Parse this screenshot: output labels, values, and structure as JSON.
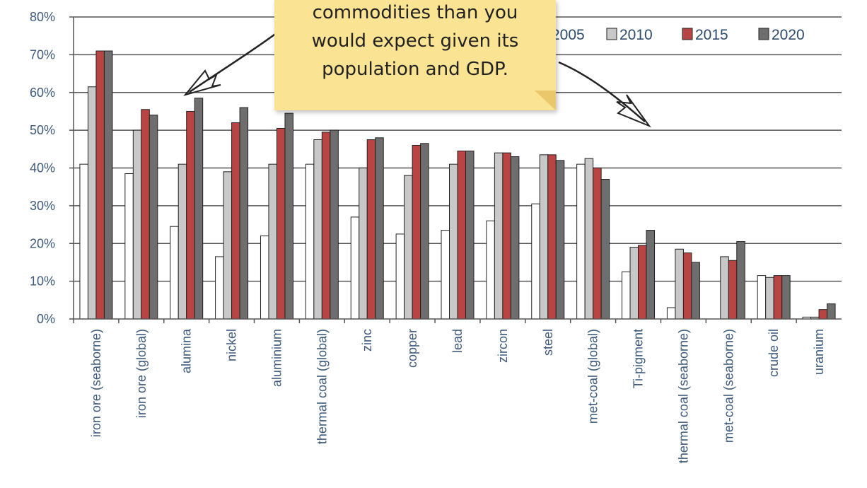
{
  "callout": {
    "lines": [
      "commodities than you",
      "would expect given its",
      "population and GDP."
    ]
  },
  "chart_data": {
    "type": "bar",
    "title": "",
    "xlabel": "",
    "ylabel": "",
    "ylim": [
      0,
      80
    ],
    "yticks": [
      "0%",
      "10%",
      "20%",
      "30%",
      "40%",
      "50%",
      "60%",
      "70%",
      "80%"
    ],
    "grid": true,
    "legend_position": "top-right",
    "categories": [
      "iron ore (seaborne)",
      "iron ore (global)",
      "alumina",
      "nickel",
      "aluminium",
      "thermal coal (global)",
      "zinc",
      "copper",
      "lead",
      "zircon",
      "steel",
      "met-coal (global)",
      "Ti-pigment",
      "thermal coal (seaborne)",
      "met-coal (seaborne)",
      "crude oil",
      "uranium"
    ],
    "series": [
      {
        "name": "2005",
        "color": "#ffffff",
        "values": [
          41,
          38.5,
          24.5,
          16.5,
          22,
          41,
          27,
          22.5,
          23.5,
          26,
          30.5,
          41,
          12.5,
          3,
          0,
          11.5,
          0.5
        ]
      },
      {
        "name": "2010",
        "color": "#c8c8c8",
        "values": [
          61.5,
          50,
          41,
          39,
          41,
          47.5,
          40,
          38,
          41,
          44,
          43.5,
          42.5,
          19,
          18.5,
          16.5,
          11,
          0.5
        ]
      },
      {
        "name": "2015",
        "color": "#b84444",
        "values": [
          71,
          55.5,
          55,
          52,
          50.5,
          49.5,
          47.5,
          46,
          44.5,
          44,
          43.5,
          40,
          19.5,
          17.5,
          15.5,
          11.5,
          2.5
        ]
      },
      {
        "name": "2020",
        "color": "#6e6e6e",
        "values": [
          71,
          54,
          58.5,
          56,
          54.5,
          50,
          48,
          46.5,
          44.5,
          43,
          42,
          37,
          23.5,
          15,
          20.5,
          11.5,
          4
        ]
      }
    ]
  }
}
